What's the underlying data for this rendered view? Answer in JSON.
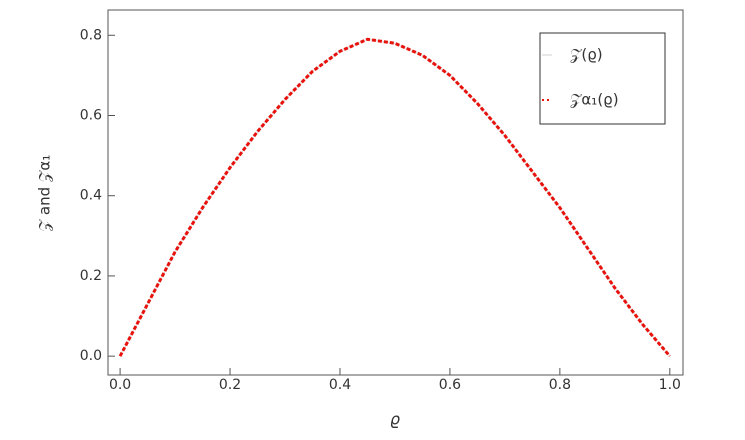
{
  "chart_data": {
    "type": "line",
    "x_label": "ϱ",
    "y_label": "𝒵 and 𝒵α₁",
    "x": [
      0,
      0.05,
      0.1,
      0.15,
      0.2,
      0.25,
      0.3,
      0.35,
      0.4,
      0.45,
      0.5,
      0.55,
      0.6,
      0.65,
      0.7,
      0.75,
      0.8,
      0.85,
      0.9,
      0.95,
      1.0
    ],
    "series": [
      {
        "name": "𝒵(ϱ)",
        "color": "#e0e0e0",
        "dashed": false,
        "values": [
          0,
          0.13,
          0.26,
          0.37,
          0.47,
          0.56,
          0.64,
          0.71,
          0.76,
          0.79,
          0.78,
          0.75,
          0.7,
          0.63,
          0.55,
          0.46,
          0.37,
          0.27,
          0.17,
          0.08,
          0
        ]
      },
      {
        "name": "𝒵α₁(ϱ)",
        "color": "#e8120c",
        "dashed": true,
        "values": [
          0,
          0.13,
          0.26,
          0.37,
          0.47,
          0.56,
          0.64,
          0.71,
          0.76,
          0.79,
          0.78,
          0.75,
          0.7,
          0.63,
          0.55,
          0.46,
          0.37,
          0.27,
          0.17,
          0.08,
          0
        ]
      }
    ],
    "xlim": [
      -0.022,
      1.024
    ],
    "ylim": [
      -0.047,
      0.863
    ],
    "xticks": [
      {
        "value": 0,
        "label": "0.0"
      },
      0.2,
      0.4,
      0.6,
      0.8,
      {
        "value": 1,
        "label": "1.0"
      }
    ],
    "yticks": [
      {
        "value": 0,
        "label": "0.0"
      },
      0.2,
      0.4,
      0.6,
      0.8
    ],
    "legend": "top-right"
  }
}
